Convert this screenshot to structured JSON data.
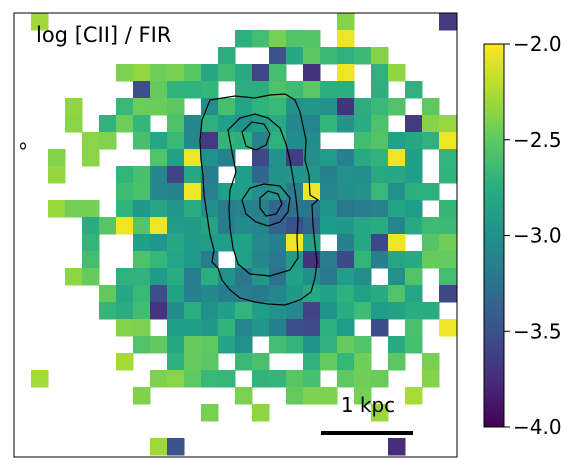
{
  "chart_data": {
    "type": "heatmap",
    "title": "log [CII] / FIR",
    "colormap": "viridis",
    "colorbar": {
      "vmin": -4.0,
      "vmax": -2.0,
      "ticks": [
        -2.0,
        -2.5,
        -3.0,
        -3.5,
        -4.0
      ],
      "tick_labels": [
        "−2.0",
        "−2.5",
        "−3.0",
        "−3.5",
        "−4.0"
      ]
    },
    "scalebar_label": "1 kpc",
    "grid": false,
    "notes": "Pixel map of log [CII]/FIR with black contours overlaid; blank pixels have no data.",
    "contour_levels": 4
  }
}
